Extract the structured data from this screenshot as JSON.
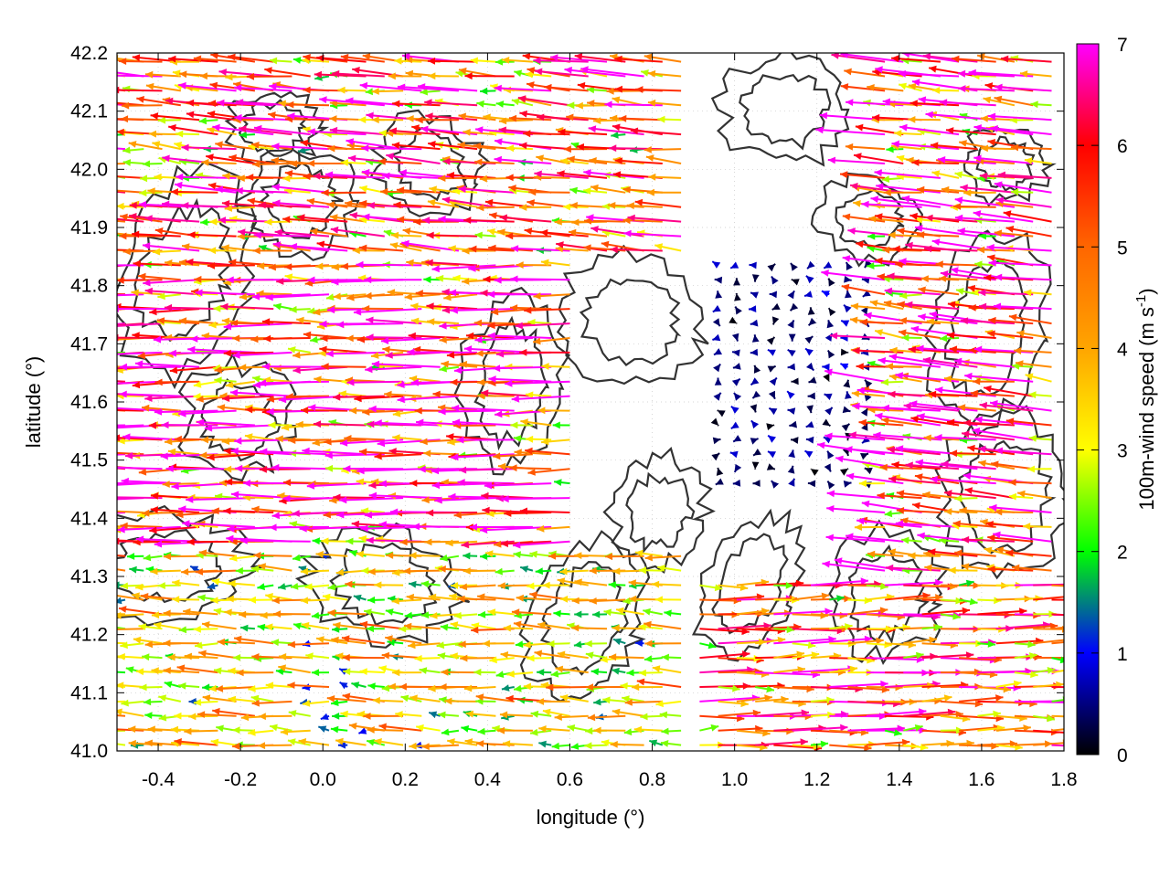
{
  "chart_data": {
    "type": "vector-field",
    "title": "",
    "xlabel": "longitude (°)",
    "ylabel": "latitude (°)",
    "xlim": [
      -0.5,
      1.8
    ],
    "ylim": [
      41.0,
      42.2
    ],
    "x_ticks": [
      {
        "value": -0.4,
        "label": "-0.4"
      },
      {
        "value": -0.2,
        "label": "-0.2"
      },
      {
        "value": 0.0,
        "label": "0.0"
      },
      {
        "value": 0.2,
        "label": "0.2"
      },
      {
        "value": 0.4,
        "label": "0.4"
      },
      {
        "value": 0.6,
        "label": "0.6"
      },
      {
        "value": 0.8,
        "label": "0.8"
      },
      {
        "value": 1.0,
        "label": "1.0"
      },
      {
        "value": 1.2,
        "label": "1.2"
      },
      {
        "value": 1.4,
        "label": "1.4"
      },
      {
        "value": 1.6,
        "label": "1.6"
      },
      {
        "value": 1.8,
        "label": "1.8"
      }
    ],
    "y_ticks": [
      {
        "value": 41.0,
        "label": "41.0"
      },
      {
        "value": 41.1,
        "label": "41.1"
      },
      {
        "value": 41.2,
        "label": "41.2"
      },
      {
        "value": 41.3,
        "label": "41.3"
      },
      {
        "value": 41.4,
        "label": "41.4"
      },
      {
        "value": 41.5,
        "label": "41.5"
      },
      {
        "value": 41.6,
        "label": "41.6"
      },
      {
        "value": 41.7,
        "label": "41.7"
      },
      {
        "value": 41.8,
        "label": "41.8"
      },
      {
        "value": 41.9,
        "label": "41.9"
      },
      {
        "value": 42.0,
        "label": "42.0"
      },
      {
        "value": 42.1,
        "label": "42.1"
      },
      {
        "value": 42.2,
        "label": "42.2"
      }
    ],
    "grid": true,
    "colorbar": {
      "label_main": "100m-wind speed (m s",
      "label_sup": "-1",
      "label_close": ")",
      "range": [
        0,
        7
      ],
      "ticks": [
        {
          "value": 0,
          "label": "0"
        },
        {
          "value": 1,
          "label": "1"
        },
        {
          "value": 2,
          "label": "2"
        },
        {
          "value": 3,
          "label": "3"
        },
        {
          "value": 4,
          "label": "4"
        },
        {
          "value": 5,
          "label": "5"
        },
        {
          "value": 6,
          "label": "6"
        },
        {
          "value": 7,
          "label": "7"
        }
      ],
      "stops": [
        {
          "value": 0,
          "color": "#000000"
        },
        {
          "value": 1,
          "color": "#0000ff"
        },
        {
          "value": 2,
          "color": "#00ff00"
        },
        {
          "value": 3,
          "color": "#ffff00"
        },
        {
          "value": 4,
          "color": "#ffa500"
        },
        {
          "value": 5,
          "color": "#ff6600"
        },
        {
          "value": 6,
          "color": "#ff0000"
        },
        {
          "value": 7,
          "color": "#ff00ff"
        }
      ]
    },
    "wind_field_regions": [
      {
        "description_id": "west-strong-easterly",
        "lon": [
          -0.5,
          0.6
        ],
        "lat": [
          41.35,
          41.85
        ],
        "u": -6.8,
        "v": 0.0,
        "speed": 7.0
      },
      {
        "description_id": "north-band",
        "lon": [
          -0.5,
          0.9
        ],
        "lat": [
          41.85,
          42.2
        ],
        "u": -6.0,
        "v": 0.5,
        "speed": 6.5
      },
      {
        "description_id": "calm-centre",
        "lon": [
          0.95,
          1.35
        ],
        "lat": [
          41.45,
          41.85
        ],
        "u": -0.3,
        "v": 0.1,
        "speed": 0.6
      },
      {
        "description_id": "east-easterly",
        "lon": [
          1.35,
          1.8
        ],
        "lat": [
          41.3,
          42.2
        ],
        "u": -6.5,
        "v": 0.7,
        "speed": 7.0
      },
      {
        "description_id": "south-west-mixed",
        "lon": [
          -0.5,
          0.9
        ],
        "lat": [
          41.0,
          41.35
        ],
        "u": -4.0,
        "v": 0.2,
        "speed": 4.5
      },
      {
        "description_id": "south-east-westerly",
        "lon": [
          0.9,
          1.8
        ],
        "lat": [
          41.0,
          41.3
        ],
        "u": 6.0,
        "v": 0.1,
        "speed": 6.0
      }
    ],
    "colors": {
      "contour": "#333333",
      "grid": "#c8c8c8",
      "axis": "#000000"
    }
  }
}
